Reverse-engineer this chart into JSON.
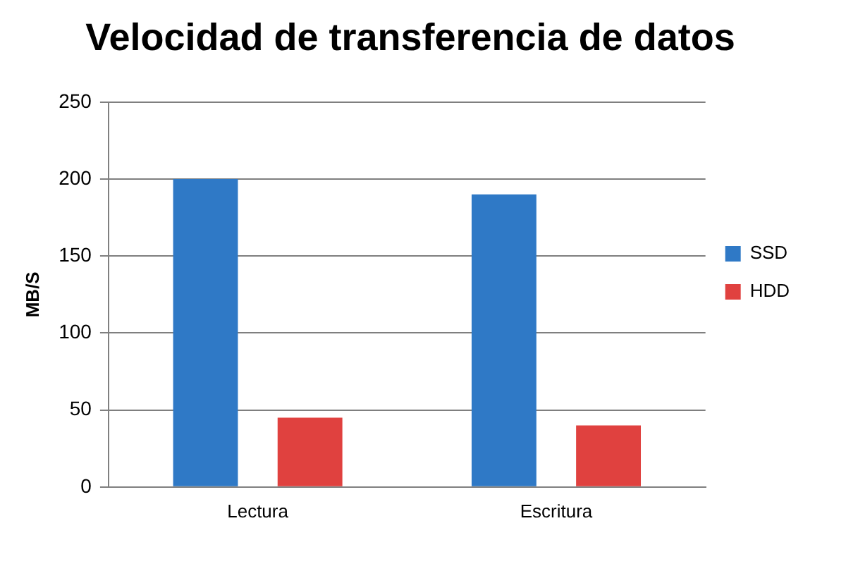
{
  "chart_data": {
    "type": "bar",
    "title": "Velocidad de transferencia de datos",
    "ylabel": "MB/S",
    "categories": [
      "Lectura",
      "Escritura"
    ],
    "series": [
      {
        "name": "SSD",
        "color": "#2f79c6",
        "values": [
          200,
          190
        ]
      },
      {
        "name": "HDD",
        "color": "#e0413f",
        "values": [
          45,
          40
        ]
      }
    ],
    "ylim": [
      0,
      250
    ],
    "yticks": [
      0,
      50,
      100,
      150,
      200,
      250
    ],
    "grid": "y",
    "legend": "right"
  }
}
